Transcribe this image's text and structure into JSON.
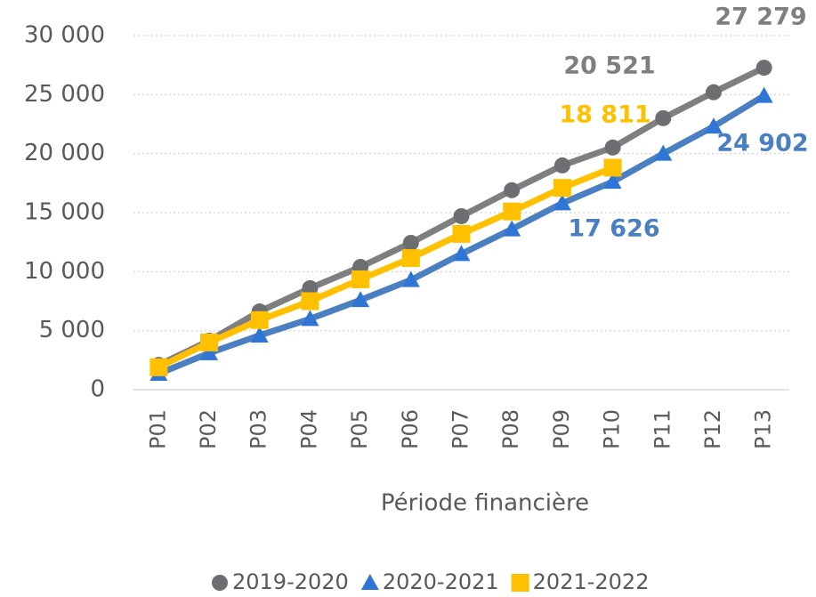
{
  "chart_data": {
    "type": "line",
    "x_label": "Période financière",
    "categories": [
      "P01",
      "P02",
      "P03",
      "P04",
      "P05",
      "P06",
      "P07",
      "P08",
      "P09",
      "P10",
      "P11",
      "P12",
      "P13"
    ],
    "series": [
      {
        "name": "2019-2020",
        "color": "#7f7f7f",
        "marker": "circle",
        "values": [
          2100,
          4150,
          6630,
          8600,
          10400,
          12440,
          14700,
          16900,
          19000,
          20521,
          23000,
          25200,
          27279
        ],
        "value_labels": [
          null,
          null,
          null,
          null,
          null,
          null,
          null,
          null,
          null,
          "20 521",
          null,
          null,
          "27 279"
        ]
      },
      {
        "name": "2020-2021",
        "color": "#4a7fc1",
        "marker": "triangle",
        "values": [
          1360,
          3100,
          4600,
          6000,
          7600,
          9300,
          11500,
          13600,
          15800,
          17626,
          20000,
          22300,
          24902
        ],
        "value_labels": [
          null,
          null,
          null,
          null,
          null,
          null,
          null,
          null,
          null,
          "17 626",
          null,
          null,
          "24 902"
        ]
      },
      {
        "name": "2021-2022",
        "color": "#ffc000",
        "marker": "square",
        "values": [
          1900,
          4000,
          5900,
          7500,
          9350,
          11150,
          13200,
          15100,
          17100,
          18811,
          null,
          null,
          null
        ],
        "value_labels": [
          null,
          null,
          null,
          null,
          null,
          null,
          null,
          null,
          null,
          "18 811",
          null,
          null,
          null
        ]
      }
    ],
    "ylim": [
      0,
      30000
    ],
    "yticks": [
      0,
      {
        "value": 5000,
        "label": "5 000"
      },
      {
        "value": 10000,
        "label": "10 000"
      },
      {
        "value": 15000,
        "label": "15 000"
      },
      {
        "value": 20000,
        "label": "20 000"
      },
      {
        "value": 25000,
        "label": "25 000"
      },
      {
        "value": 30000,
        "label": "30 000"
      }
    ],
    "grid": true,
    "legend": "bottom"
  }
}
